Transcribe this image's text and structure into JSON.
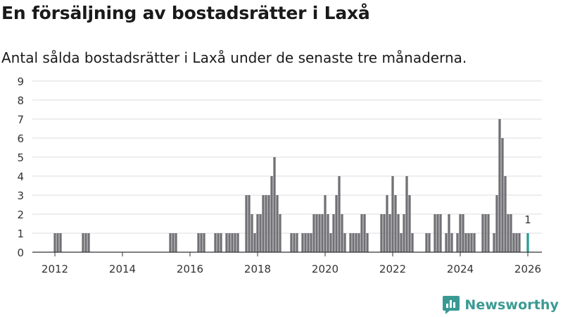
{
  "title": "En försäljning av bostadsrätter i Laxå",
  "subtitle": "Antal sålda bostadsrätter i Laxå under de senaste tre månaderna.",
  "brand": {
    "name": "Newsworthy",
    "logo": "newsworthy-logo-icon"
  },
  "colors": {
    "bar": "#717075",
    "highlight": "#2a9d95",
    "grid": "#dcdcdc",
    "axis": "#333333",
    "brand": "#3a9a93"
  },
  "chart_data": {
    "type": "bar",
    "x_unit": "month",
    "x_start": "2012-01",
    "x_end": "2026-01",
    "xlim": [
      "2011-05",
      "2026-06"
    ],
    "ylim": [
      0,
      9
    ],
    "yticks": [
      0,
      1,
      2,
      3,
      4,
      5,
      6,
      7,
      8,
      9
    ],
    "xtick_years": [
      2012,
      2014,
      2016,
      2018,
      2020,
      2022,
      2024,
      2026
    ],
    "values": [
      1,
      1,
      1,
      0,
      0,
      0,
      0,
      0,
      0,
      0,
      1,
      1,
      1,
      0,
      0,
      0,
      0,
      0,
      0,
      0,
      0,
      0,
      0,
      0,
      0,
      0,
      0,
      0,
      0,
      0,
      0,
      0,
      0,
      0,
      0,
      0,
      0,
      0,
      0,
      0,
      0,
      1,
      1,
      1,
      0,
      0,
      0,
      0,
      0,
      0,
      0,
      1,
      1,
      1,
      0,
      0,
      0,
      1,
      1,
      1,
      0,
      1,
      1,
      1,
      1,
      1,
      0,
      0,
      3,
      3,
      2,
      1,
      2,
      2,
      3,
      3,
      3,
      4,
      5,
      3,
      2,
      0,
      0,
      0,
      1,
      1,
      1,
      0,
      1,
      1,
      1,
      1,
      2,
      2,
      2,
      2,
      3,
      2,
      1,
      2,
      3,
      4,
      2,
      1,
      0,
      1,
      1,
      1,
      1,
      2,
      2,
      1,
      0,
      0,
      0,
      0,
      2,
      2,
      3,
      2,
      4,
      3,
      2,
      1,
      2,
      4,
      3,
      1,
      0,
      0,
      0,
      0,
      1,
      1,
      0,
      2,
      2,
      2,
      0,
      1,
      2,
      1,
      0,
      1,
      2,
      2,
      1,
      1,
      1,
      1,
      0,
      0,
      2,
      2,
      2,
      0,
      1,
      3,
      7,
      6,
      4,
      2,
      2,
      1,
      1,
      1,
      0,
      0,
      1
    ],
    "highlight_index": 168,
    "annotation": {
      "label": "1",
      "value": 1
    }
  }
}
